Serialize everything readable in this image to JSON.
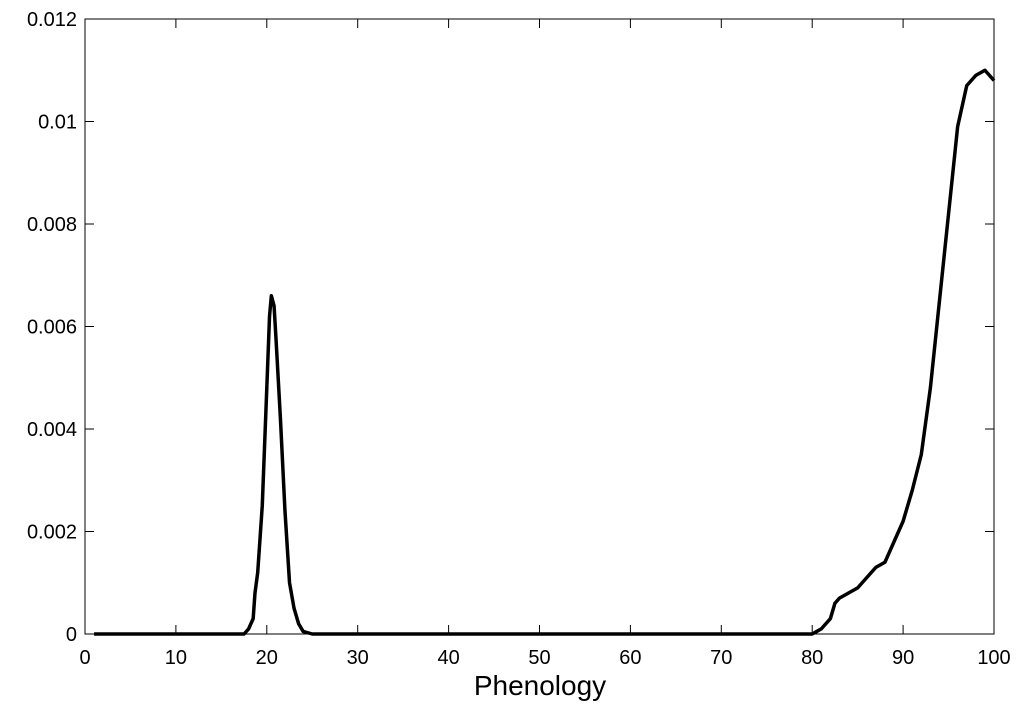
{
  "chart_data": {
    "type": "line",
    "xlabel": "Phenology",
    "x": [
      1,
      5,
      10,
      15,
      17,
      17.5,
      18,
      18.5,
      18.7,
      19,
      19.5,
      20,
      20.3,
      20.5,
      20.8,
      21,
      21.5,
      22,
      22.5,
      23,
      23.5,
      24,
      25,
      30,
      40,
      50,
      60,
      70,
      80,
      80.5,
      81,
      81.5,
      82,
      82.5,
      83,
      84,
      85,
      86,
      87,
      88,
      89,
      90,
      91,
      92,
      93,
      94,
      95,
      96,
      97,
      98,
      99,
      100
    ],
    "series": [
      {
        "color": "#000000",
        "values": [
          0,
          0,
          0,
          0,
          0,
          0,
          0.0001,
          0.0003,
          0.0008,
          0.0012,
          0.0025,
          0.0048,
          0.0062,
          0.0066,
          0.0064,
          0.0058,
          0.0042,
          0.0024,
          0.001,
          0.0005,
          0.0002,
          5e-05,
          0,
          0,
          0,
          0,
          0,
          0,
          0,
          5e-05,
          0.0001,
          0.0002,
          0.0003,
          0.0006,
          0.0007,
          0.0008,
          0.0009,
          0.0011,
          0.0013,
          0.0014,
          0.0018,
          0.0022,
          0.0028,
          0.0035,
          0.0048,
          0.0065,
          0.0082,
          0.0099,
          0.0107,
          0.0109,
          0.011,
          0.0108
        ]
      }
    ],
    "xlim": [
      0,
      100
    ],
    "xticks": [
      0,
      10,
      20,
      30,
      40,
      50,
      60,
      70,
      80,
      90,
      100
    ],
    "ylim": [
      0,
      0.012
    ],
    "yticks": [
      0,
      0.002,
      0.004,
      0.006,
      0.008,
      0.01,
      0.012
    ]
  }
}
